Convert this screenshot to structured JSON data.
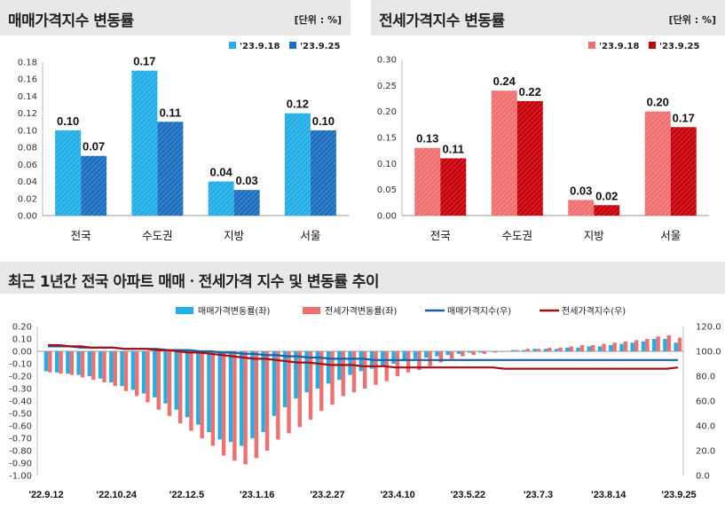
{
  "panels": {
    "left": {
      "title": "매매가격지수 변동률",
      "unit": "[단위 : %]"
    },
    "right": {
      "title": "전세가격지수 변동률",
      "unit": "[단위 : %]"
    },
    "bottom": {
      "title": "최근 1년간 전국 아파트 매매ㆍ전세가격 지수 및 변동률 추이"
    }
  },
  "colors": {
    "sale_prev": "#22aee6",
    "sale_curr": "#1c6fc0",
    "lease_prev": "#f07070",
    "lease_curr": "#c8000a",
    "sale_index_line": "#1c5fa8",
    "lease_index_line": "#a50f14"
  },
  "chart_data": [
    {
      "type": "bar",
      "categories": [
        "전국",
        "수도권",
        "지방",
        "서울"
      ],
      "series": [
        {
          "name": "'23.9.18",
          "values": [
            0.1,
            0.17,
            0.04,
            0.12
          ]
        },
        {
          "name": "'23.9.25",
          "values": [
            0.07,
            0.11,
            0.03,
            0.1
          ]
        }
      ],
      "data_labels": [
        [
          "0.10",
          "0.17",
          "0.04",
          "0.12"
        ],
        [
          "0.07",
          "0.11",
          "0.03",
          "0.10"
        ]
      ],
      "ylim": [
        0,
        0.18
      ],
      "yticks": [
        "0.00",
        "0.02",
        "0.04",
        "0.06",
        "0.08",
        "0.10",
        "0.12",
        "0.14",
        "0.16",
        "0.18"
      ],
      "legend": "top-right",
      "grid": false
    },
    {
      "type": "bar",
      "categories": [
        "전국",
        "수도권",
        "지방",
        "서울"
      ],
      "series": [
        {
          "name": "'23.9.18",
          "values": [
            0.13,
            0.24,
            0.03,
            0.2
          ]
        },
        {
          "name": "'23.9.25",
          "values": [
            0.11,
            0.22,
            0.02,
            0.17
          ]
        }
      ],
      "data_labels": [
        [
          "0.13",
          "0.24",
          "0.03",
          "0.20"
        ],
        [
          "0.11",
          "0.22",
          "0.02",
          "0.17"
        ]
      ],
      "ylim": [
        0,
        0.3
      ],
      "yticks": [
        "0.00",
        "0.05",
        "0.10",
        "0.15",
        "0.20",
        "0.25",
        "0.30"
      ],
      "legend": "top-right",
      "grid": false
    },
    {
      "type": "bar",
      "x_labels": [
        "'22.9.12",
        "'22.10.24",
        "'22.12.5",
        "'23.1.16",
        "'23.2.27",
        "'23.4.10",
        "'23.5.22",
        "'23.7.3",
        "'23.8.14",
        "'23.9.25"
      ],
      "y_left_lim": [
        -1.0,
        0.2
      ],
      "y_left_ticks": [
        "-1.00",
        "-0.90",
        "-0.80",
        "-0.70",
        "-0.60",
        "-0.50",
        "-0.40",
        "-0.30",
        "-0.20",
        "-0.10",
        "0.00",
        "0.10",
        "0.20"
      ],
      "y_right_lim": [
        0,
        120
      ],
      "y_right_ticks": [
        "0.0",
        "20.0",
        "40.0",
        "60.0",
        "80.0",
        "100.0",
        "120.0"
      ],
      "legend": "top",
      "series": [
        {
          "name": "매매가격변동률(좌)",
          "axis": "left",
          "type": "bar",
          "values": [
            -0.16,
            -0.17,
            -0.18,
            -0.19,
            -0.2,
            -0.22,
            -0.25,
            -0.28,
            -0.31,
            -0.34,
            -0.37,
            -0.42,
            -0.47,
            -0.53,
            -0.59,
            -0.65,
            -0.71,
            -0.73,
            -0.76,
            -0.7,
            -0.65,
            -0.52,
            -0.45,
            -0.38,
            -0.33,
            -0.3,
            -0.26,
            -0.23,
            -0.19,
            -0.16,
            -0.14,
            -0.12,
            -0.1,
            -0.08,
            -0.06,
            -0.05,
            -0.04,
            -0.03,
            -0.02,
            -0.01,
            -0.01,
            0.0,
            0.0,
            0.01,
            0.01,
            0.02,
            0.02,
            0.02,
            0.03,
            0.03,
            0.04,
            0.04,
            0.05,
            0.06,
            0.07,
            0.08,
            0.1,
            0.1,
            0.07
          ]
        },
        {
          "name": "전세가격변동률(좌)",
          "axis": "left",
          "type": "bar",
          "values": [
            -0.17,
            -0.18,
            -0.19,
            -0.21,
            -0.23,
            -0.25,
            -0.28,
            -0.32,
            -0.36,
            -0.41,
            -0.47,
            -0.52,
            -0.58,
            -0.64,
            -0.7,
            -0.76,
            -0.84,
            -0.88,
            -0.91,
            -0.86,
            -0.8,
            -0.71,
            -0.66,
            -0.61,
            -0.55,
            -0.48,
            -0.43,
            -0.36,
            -0.33,
            -0.3,
            -0.27,
            -0.24,
            -0.2,
            -0.17,
            -0.15,
            -0.12,
            -0.09,
            -0.06,
            -0.04,
            -0.03,
            -0.02,
            -0.01,
            0.0,
            0.01,
            0.02,
            0.02,
            0.03,
            0.03,
            0.04,
            0.05,
            0.05,
            0.06,
            0.07,
            0.08,
            0.09,
            0.1,
            0.12,
            0.13,
            0.11
          ]
        },
        {
          "name": "매매가격지수(우)",
          "axis": "right",
          "type": "line",
          "values": [
            104,
            104,
            104,
            103,
            103,
            103,
            103,
            102,
            102,
            102,
            102,
            101,
            101,
            101,
            100,
            100,
            99,
            99,
            98,
            98,
            97,
            97,
            96,
            96,
            95,
            95,
            94,
            94,
            94,
            94,
            93,
            93,
            93,
            93,
            93,
            93,
            93,
            93,
            93,
            93,
            93,
            93,
            93,
            93,
            93,
            93,
            93,
            93,
            93,
            93,
            93,
            93,
            93,
            93,
            93,
            93,
            93,
            93,
            93
          ]
        },
        {
          "name": "전세가격지수(우)",
          "axis": "right",
          "type": "line",
          "values": [
            105,
            105,
            104,
            104,
            103,
            103,
            103,
            102,
            102,
            102,
            101,
            101,
            100,
            99,
            99,
            98,
            97,
            96,
            95,
            94,
            94,
            93,
            92,
            91,
            91,
            90,
            89,
            89,
            89,
            88,
            88,
            88,
            87,
            87,
            87,
            87,
            87,
            87,
            87,
            87,
            87,
            87,
            86,
            86,
            86,
            86,
            86,
            86,
            86,
            86,
            86,
            86,
            86,
            86,
            86,
            86,
            86,
            86,
            87
          ]
        }
      ]
    }
  ]
}
